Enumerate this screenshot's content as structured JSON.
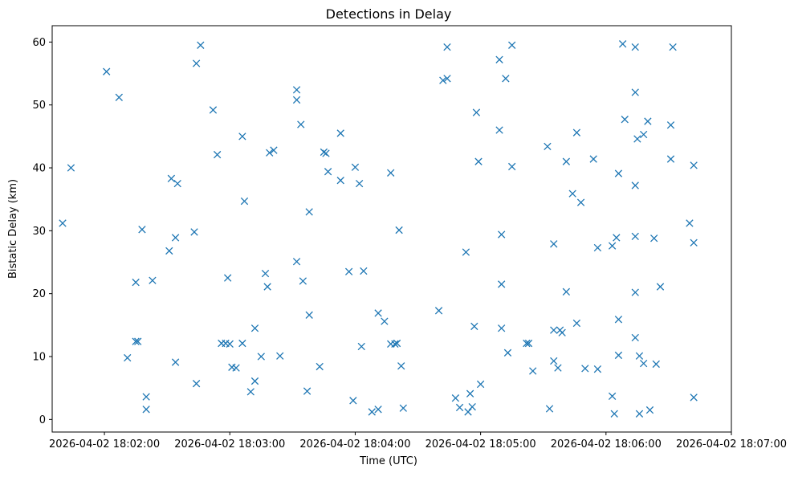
{
  "chart_data": {
    "type": "scatter",
    "title": "Detections in Delay",
    "xlabel": "Time (UTC)",
    "ylabel": "Bistatic Delay (km)",
    "x_ticks": [
      "2026-04-02 18:02:00",
      "2026-04-02 18:03:00",
      "2026-04-02 18:04:00",
      "2026-04-02 18:05:00",
      "2026-04-02 18:06:00",
      "2026-04-02 18:07:00"
    ],
    "y_ticks": [
      "0",
      "10",
      "20",
      "30",
      "40",
      "50",
      "60"
    ],
    "xlim": [
      "2026-04-02 18:01:35",
      "2026-04-02 18:07:00"
    ],
    "ylim": [
      -2.0,
      62.6
    ],
    "grid": false,
    "marker": "x",
    "colors": {
      "marker": "#1f77b4"
    },
    "series": [
      {
        "points": [
          [
            "2026-04-02 18:01:40",
            31.2
          ],
          [
            "2026-04-02 18:01:44",
            40.0
          ],
          [
            "2026-04-02 18:02:01",
            55.3
          ],
          [
            "2026-04-02 18:02:07",
            51.2
          ],
          [
            "2026-04-02 18:02:11",
            9.8
          ],
          [
            "2026-04-02 18:02:15",
            21.8
          ],
          [
            "2026-04-02 18:02:15",
            12.4
          ],
          [
            "2026-04-02 18:02:16",
            12.4
          ],
          [
            "2026-04-02 18:02:18",
            30.2
          ],
          [
            "2026-04-02 18:02:20",
            1.6
          ],
          [
            "2026-04-02 18:02:20",
            3.6
          ],
          [
            "2026-04-02 18:02:23",
            22.1
          ],
          [
            "2026-04-02 18:02:31",
            26.8
          ],
          [
            "2026-04-02 18:02:32",
            38.3
          ],
          [
            "2026-04-02 18:02:34",
            9.1
          ],
          [
            "2026-04-02 18:02:34",
            28.9
          ],
          [
            "2026-04-02 18:02:35",
            37.5
          ],
          [
            "2026-04-02 18:02:43",
            29.8
          ],
          [
            "2026-04-02 18:02:44",
            56.6
          ],
          [
            "2026-04-02 18:02:44",
            5.7
          ],
          [
            "2026-04-02 18:02:46",
            59.5
          ],
          [
            "2026-04-02 18:02:52",
            49.2
          ],
          [
            "2026-04-02 18:02:54",
            42.1
          ],
          [
            "2026-04-02 18:02:56",
            12.1
          ],
          [
            "2026-04-02 18:02:58",
            12.1
          ],
          [
            "2026-04-02 18:02:59",
            22.5
          ],
          [
            "2026-04-02 18:03:00",
            12.0
          ],
          [
            "2026-04-02 18:03:01",
            8.3
          ],
          [
            "2026-04-02 18:03:03",
            8.2
          ],
          [
            "2026-04-02 18:03:06",
            45.0
          ],
          [
            "2026-04-02 18:03:06",
            12.1
          ],
          [
            "2026-04-02 18:03:07",
            34.7
          ],
          [
            "2026-04-02 18:03:10",
            4.4
          ],
          [
            "2026-04-02 18:03:12",
            14.5
          ],
          [
            "2026-04-02 18:03:12",
            6.1
          ],
          [
            "2026-04-02 18:03:15",
            10.0
          ],
          [
            "2026-04-02 18:03:17",
            23.2
          ],
          [
            "2026-04-02 18:03:18",
            21.1
          ],
          [
            "2026-04-02 18:03:19",
            42.4
          ],
          [
            "2026-04-02 18:03:21",
            42.8
          ],
          [
            "2026-04-02 18:03:24",
            10.1
          ],
          [
            "2026-04-02 18:03:32",
            52.4
          ],
          [
            "2026-04-02 18:03:32",
            50.8
          ],
          [
            "2026-04-02 18:03:32",
            25.1
          ],
          [
            "2026-04-02 18:03:34",
            46.9
          ],
          [
            "2026-04-02 18:03:35",
            22.0
          ],
          [
            "2026-04-02 18:03:37",
            4.5
          ],
          [
            "2026-04-02 18:03:38",
            33.0
          ],
          [
            "2026-04-02 18:03:38",
            16.6
          ],
          [
            "2026-04-02 18:03:43",
            8.4
          ],
          [
            "2026-04-02 18:03:45",
            42.5
          ],
          [
            "2026-04-02 18:03:46",
            42.3
          ],
          [
            "2026-04-02 18:03:47",
            39.4
          ],
          [
            "2026-04-02 18:03:53",
            38.0
          ],
          [
            "2026-04-02 18:03:53",
            45.5
          ],
          [
            "2026-04-02 18:03:57",
            23.5
          ],
          [
            "2026-04-02 18:03:59",
            3.0
          ],
          [
            "2026-04-02 18:04:00",
            40.1
          ],
          [
            "2026-04-02 18:04:02",
            37.5
          ],
          [
            "2026-04-02 18:04:03",
            11.6
          ],
          [
            "2026-04-02 18:04:04",
            23.6
          ],
          [
            "2026-04-02 18:04:08",
            1.2
          ],
          [
            "2026-04-02 18:04:11",
            16.9
          ],
          [
            "2026-04-02 18:04:11",
            1.6
          ],
          [
            "2026-04-02 18:04:14",
            15.6
          ],
          [
            "2026-04-02 18:04:17",
            39.2
          ],
          [
            "2026-04-02 18:04:17",
            12.0
          ],
          [
            "2026-04-02 18:04:19",
            12.0
          ],
          [
            "2026-04-02 18:04:20",
            12.1
          ],
          [
            "2026-04-02 18:04:21",
            30.1
          ],
          [
            "2026-04-02 18:04:22",
            8.5
          ],
          [
            "2026-04-02 18:04:23",
            1.8
          ],
          [
            "2026-04-02 18:04:40",
            17.3
          ],
          [
            "2026-04-02 18:04:42",
            53.9
          ],
          [
            "2026-04-02 18:04:44",
            54.2
          ],
          [
            "2026-04-02 18:04:44",
            59.2
          ],
          [
            "2026-04-02 18:04:48",
            3.4
          ],
          [
            "2026-04-02 18:04:50",
            1.9
          ],
          [
            "2026-04-02 18:04:53",
            26.6
          ],
          [
            "2026-04-02 18:04:54",
            1.2
          ],
          [
            "2026-04-02 18:04:55",
            4.1
          ],
          [
            "2026-04-02 18:04:56",
            2.0
          ],
          [
            "2026-04-02 18:04:57",
            14.8
          ],
          [
            "2026-04-02 18:04:58",
            48.8
          ],
          [
            "2026-04-02 18:04:59",
            41.0
          ],
          [
            "2026-04-02 18:05:00",
            5.6
          ],
          [
            "2026-04-02 18:05:09",
            57.2
          ],
          [
            "2026-04-02 18:05:09",
            46.0
          ],
          [
            "2026-04-02 18:05:10",
            29.4
          ],
          [
            "2026-04-02 18:05:10",
            21.5
          ],
          [
            "2026-04-02 18:05:10",
            14.5
          ],
          [
            "2026-04-02 18:05:12",
            54.2
          ],
          [
            "2026-04-02 18:05:13",
            10.6
          ],
          [
            "2026-04-02 18:05:15",
            59.5
          ],
          [
            "2026-04-02 18:05:15",
            40.2
          ],
          [
            "2026-04-02 18:05:22",
            12.1
          ],
          [
            "2026-04-02 18:05:23",
            12.1
          ],
          [
            "2026-04-02 18:05:25",
            7.7
          ],
          [
            "2026-04-02 18:05:32",
            43.4
          ],
          [
            "2026-04-02 18:05:33",
            1.7
          ],
          [
            "2026-04-02 18:05:35",
            27.9
          ],
          [
            "2026-04-02 18:05:35",
            14.2
          ],
          [
            "2026-04-02 18:05:35",
            9.3
          ],
          [
            "2026-04-02 18:05:37",
            8.2
          ],
          [
            "2026-04-02 18:05:38",
            14.2
          ],
          [
            "2026-04-02 18:05:39",
            13.8
          ],
          [
            "2026-04-02 18:05:41",
            20.3
          ],
          [
            "2026-04-02 18:05:41",
            41.0
          ],
          [
            "2026-04-02 18:05:44",
            35.9
          ],
          [
            "2026-04-02 18:05:46",
            15.3
          ],
          [
            "2026-04-02 18:05:46",
            45.6
          ],
          [
            "2026-04-02 18:05:48",
            34.5
          ],
          [
            "2026-04-02 18:05:50",
            8.1
          ],
          [
            "2026-04-02 18:05:54",
            41.4
          ],
          [
            "2026-04-02 18:05:56",
            27.3
          ],
          [
            "2026-04-02 18:05:56",
            8.0
          ],
          [
            "2026-04-02 18:06:03",
            3.7
          ],
          [
            "2026-04-02 18:06:03",
            27.6
          ],
          [
            "2026-04-02 18:06:04",
            0.9
          ],
          [
            "2026-04-02 18:06:05",
            28.9
          ],
          [
            "2026-04-02 18:06:06",
            39.1
          ],
          [
            "2026-04-02 18:06:06",
            15.9
          ],
          [
            "2026-04-02 18:06:06",
            10.2
          ],
          [
            "2026-04-02 18:06:08",
            59.7
          ],
          [
            "2026-04-02 18:06:09",
            47.7
          ],
          [
            "2026-04-02 18:06:14",
            59.2
          ],
          [
            "2026-04-02 18:06:14",
            37.2
          ],
          [
            "2026-04-02 18:06:14",
            29.1
          ],
          [
            "2026-04-02 18:06:14",
            52.0
          ],
          [
            "2026-04-02 18:06:14",
            20.2
          ],
          [
            "2026-04-02 18:06:14",
            13.0
          ],
          [
            "2026-04-02 18:06:15",
            44.6
          ],
          [
            "2026-04-02 18:06:16",
            10.1
          ],
          [
            "2026-04-02 18:06:16",
            0.9
          ],
          [
            "2026-04-02 18:06:18",
            45.3
          ],
          [
            "2026-04-02 18:06:18",
            8.9
          ],
          [
            "2026-04-02 18:06:20",
            47.4
          ],
          [
            "2026-04-02 18:06:21",
            1.5
          ],
          [
            "2026-04-02 18:06:23",
            28.8
          ],
          [
            "2026-04-02 18:06:24",
            8.8
          ],
          [
            "2026-04-02 18:06:26",
            21.1
          ],
          [
            "2026-04-02 18:06:31",
            46.8
          ],
          [
            "2026-04-02 18:06:31",
            41.4
          ],
          [
            "2026-04-02 18:06:32",
            59.2
          ],
          [
            "2026-04-02 18:06:40",
            31.2
          ],
          [
            "2026-04-02 18:06:42",
            3.5
          ],
          [
            "2026-04-02 18:06:42",
            28.1
          ],
          [
            "2026-04-02 18:06:42",
            40.4
          ]
        ]
      }
    ]
  }
}
